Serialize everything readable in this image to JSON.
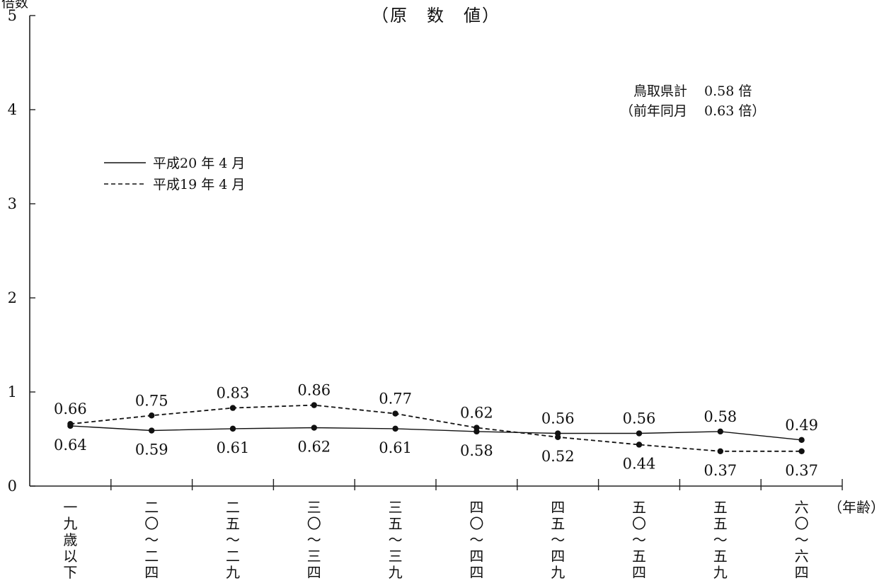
{
  "chart_data": {
    "type": "line",
    "title": "（原　数　値）",
    "ylabel_top": "倍数",
    "xlabel": "（年齢）",
    "ylim": [
      0,
      5
    ],
    "yticks": [
      "0",
      "1",
      "2",
      "3",
      "4",
      "5"
    ],
    "categories": [
      [
        "一",
        "九",
        "歳",
        "以",
        "下"
      ],
      [
        "二",
        "〇",
        "～",
        "二",
        "四"
      ],
      [
        "二",
        "五",
        "～",
        "二",
        "九"
      ],
      [
        "三",
        "〇",
        "～",
        "三",
        "四"
      ],
      [
        "三",
        "五",
        "～",
        "三",
        "九"
      ],
      [
        "四",
        "〇",
        "～",
        "四",
        "四"
      ],
      [
        "四",
        "五",
        "～",
        "四",
        "九"
      ],
      [
        "五",
        "〇",
        "～",
        "五",
        "四"
      ],
      [
        "五",
        "五",
        "～",
        "五",
        "九"
      ],
      [
        "六",
        "〇",
        "～",
        "六",
        "四"
      ]
    ],
    "series": [
      {
        "name": "平成20 年 4 月",
        "style": "solid",
        "values": [
          0.64,
          0.59,
          0.61,
          0.62,
          0.61,
          0.58,
          0.56,
          0.56,
          0.58,
          0.49
        ],
        "labels": [
          "0.64",
          "0.59",
          "0.61",
          "0.62",
          "0.61",
          "0.58",
          "0.56",
          "0.56",
          "0.58",
          "0.49"
        ]
      },
      {
        "name": "平成19 年 4 月",
        "style": "dashed",
        "values": [
          0.66,
          0.75,
          0.83,
          0.86,
          0.77,
          0.62,
          0.52,
          0.44,
          0.37,
          0.37
        ],
        "labels": [
          "0.66",
          "0.75",
          "0.83",
          "0.86",
          "0.77",
          "0.62",
          "0.52",
          "0.44",
          "0.37",
          "0.37"
        ]
      }
    ],
    "legend": "upper-left",
    "annotation": {
      "line1_label": "鳥取県計",
      "line1_value": "0.58 倍",
      "line2_label": "（前年同月",
      "line2_value": "0.63 倍）"
    },
    "colors": {
      "line": "#111111",
      "axis": "#222222"
    }
  }
}
